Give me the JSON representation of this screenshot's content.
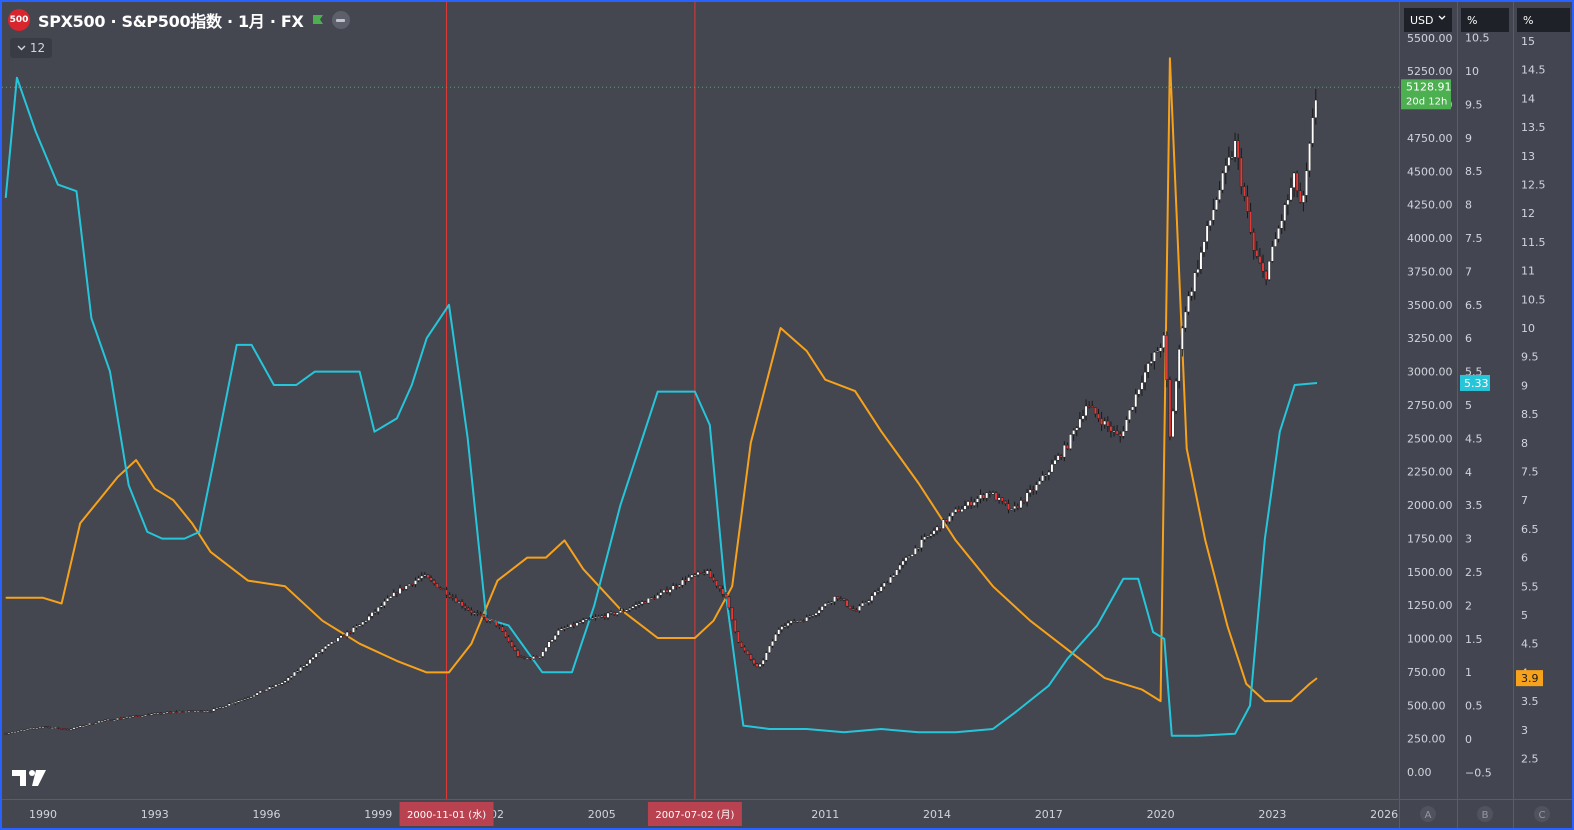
{
  "header": {
    "logo_text": "500",
    "title": "SPX500 · S&P500指数 · 1月 · FX",
    "collapse_count": "12",
    "flag_color": "#4caf50"
  },
  "scales": {
    "a_unit": "USD",
    "b_unit": "%",
    "c_unit": "%",
    "a_ticks": [
      "0.00",
      "250.00",
      "500.00",
      "750.00",
      "1000.00",
      "1250.00",
      "1500.00",
      "1750.00",
      "2000.00",
      "2250.00",
      "2500.00",
      "2750.00",
      "3000.00",
      "3250.00",
      "3500.00",
      "3750.00",
      "4000.00",
      "4250.00",
      "4500.00",
      "4750.00",
      "5000.00",
      "5250.00",
      "5500.00"
    ],
    "b_ticks": [
      "−0.5",
      "0",
      "0.5",
      "1",
      "1.5",
      "2",
      "2.5",
      "3",
      "3.5",
      "4",
      "4.5",
      "5",
      "5.5",
      "6",
      "6.5",
      "7",
      "7.5",
      "8",
      "8.5",
      "9",
      "9.5",
      "10",
      "10.5"
    ],
    "c_ticks": [
      "2.5",
      "3",
      "3.5",
      "4",
      "4.5",
      "5",
      "5.5",
      "6",
      "6.5",
      "7",
      "7.5",
      "8",
      "8.5",
      "9",
      "9.5",
      "10",
      "10.5",
      "11",
      "11.5",
      "12",
      "12.5",
      "13",
      "13.5",
      "14",
      "14.5",
      "15",
      "15.5"
    ],
    "bottom_labels": [
      "A",
      "B",
      "C"
    ]
  },
  "price_tag": {
    "value": "5128.91",
    "countdown": "20d 12h"
  },
  "b_tag": "5.33",
  "c_tag": "3.9",
  "crosshair_labels": [
    "2000-11-01 (水)",
    "2007-07-02 (月)"
  ],
  "x_axis_labels": [
    "1990",
    "1993",
    "1996",
    "1999",
    "2002",
    "2005",
    "2008",
    "2011",
    "2014",
    "2017",
    "2020",
    "2023",
    "2026"
  ],
  "colors": {
    "background": "#444650",
    "cyan": "#26c6da",
    "orange": "#f7a21b",
    "candle_up": "#ffffff",
    "candle_down": "#e53935",
    "price_tag": "#4caf50",
    "crosshair": "#e53935"
  },
  "chart_data": {
    "type": "line",
    "x_range": [
      1988.9,
      2026.4
    ],
    "series": [
      {
        "axis": "A",
        "points": [
          [
            1989.0,
            290
          ],
          [
            1990.0,
            340
          ],
          [
            1990.7,
            320
          ],
          [
            1991.5,
            380
          ],
          [
            1992.5,
            420
          ],
          [
            1993.5,
            450
          ],
          [
            1994.5,
            460
          ],
          [
            1995.5,
            560
          ],
          [
            1996.5,
            680
          ],
          [
            1997.5,
            920
          ],
          [
            1998.5,
            1100
          ],
          [
            1999.5,
            1350
          ],
          [
            2000.2,
            1470
          ],
          [
            2000.8,
            1350
          ],
          [
            2001.5,
            1200
          ],
          [
            2002.2,
            1100
          ],
          [
            2002.8,
            850
          ],
          [
            2003.3,
            860
          ],
          [
            2003.8,
            1050
          ],
          [
            2004.5,
            1130
          ],
          [
            2005.5,
            1200
          ],
          [
            2006.5,
            1320
          ],
          [
            2007.3,
            1450
          ],
          [
            2007.8,
            1500
          ],
          [
            2008.3,
            1330
          ],
          [
            2008.7,
            950
          ],
          [
            2009.2,
            770
          ],
          [
            2009.8,
            1100
          ],
          [
            2010.5,
            1150
          ],
          [
            2011.3,
            1320
          ],
          [
            2011.8,
            1200
          ],
          [
            2012.5,
            1380
          ],
          [
            2013.5,
            1700
          ],
          [
            2014.5,
            1950
          ],
          [
            2015.4,
            2100
          ],
          [
            2016.0,
            1950
          ],
          [
            2016.7,
            2150
          ],
          [
            2017.5,
            2450
          ],
          [
            2018.0,
            2750
          ],
          [
            2018.9,
            2500
          ],
          [
            2019.5,
            2950
          ],
          [
            2020.1,
            3250
          ],
          [
            2020.25,
            2500
          ],
          [
            2020.6,
            3400
          ],
          [
            2021.0,
            3800
          ],
          [
            2021.5,
            4300
          ],
          [
            2022.0,
            4700
          ],
          [
            2022.5,
            3900
          ],
          [
            2022.8,
            3700
          ],
          [
            2023.2,
            4100
          ],
          [
            2023.6,
            4450
          ],
          [
            2023.8,
            4200
          ],
          [
            2024.2,
            5128.91
          ]
        ]
      },
      {
        "axis": "B",
        "points": [
          [
            1989.0,
            8.1
          ],
          [
            1989.3,
            9.9
          ],
          [
            1989.8,
            9.1
          ],
          [
            1990.4,
            8.3
          ],
          [
            1990.9,
            8.2
          ],
          [
            1991.3,
            6.3
          ],
          [
            1991.8,
            5.5
          ],
          [
            1992.3,
            3.8
          ],
          [
            1992.8,
            3.1
          ],
          [
            1993.2,
            3.0
          ],
          [
            1993.8,
            3.0
          ],
          [
            1994.2,
            3.1
          ],
          [
            1994.6,
            4.2
          ],
          [
            1995.2,
            5.9
          ],
          [
            1995.6,
            5.9
          ],
          [
            1996.2,
            5.3
          ],
          [
            1996.8,
            5.3
          ],
          [
            1997.3,
            5.5
          ],
          [
            1998.0,
            5.5
          ],
          [
            1998.5,
            5.5
          ],
          [
            1998.9,
            4.6
          ],
          [
            1999.5,
            4.8
          ],
          [
            1999.9,
            5.3
          ],
          [
            2000.3,
            6.0
          ],
          [
            2000.9,
            6.5
          ],
          [
            2001.4,
            4.5
          ],
          [
            2001.9,
            1.8
          ],
          [
            2002.5,
            1.7
          ],
          [
            2003.4,
            1.0
          ],
          [
            2004.2,
            1.0
          ],
          [
            2004.8,
            2.0
          ],
          [
            2005.5,
            3.5
          ],
          [
            2006.5,
            5.2
          ],
          [
            2007.5,
            5.2
          ],
          [
            2007.9,
            4.7
          ],
          [
            2008.3,
            2.3
          ],
          [
            2008.8,
            0.2
          ],
          [
            2009.5,
            0.15
          ],
          [
            2010.5,
            0.15
          ],
          [
            2011.5,
            0.1
          ],
          [
            2012.5,
            0.15
          ],
          [
            2013.5,
            0.1
          ],
          [
            2014.5,
            0.1
          ],
          [
            2015.5,
            0.15
          ],
          [
            2016.1,
            0.4
          ],
          [
            2017.0,
            0.8
          ],
          [
            2017.5,
            1.2
          ],
          [
            2018.3,
            1.7
          ],
          [
            2019.0,
            2.4
          ],
          [
            2019.4,
            2.4
          ],
          [
            2019.8,
            1.6
          ],
          [
            2020.1,
            1.5
          ],
          [
            2020.3,
            0.05
          ],
          [
            2021.0,
            0.05
          ],
          [
            2022.0,
            0.08
          ],
          [
            2022.4,
            0.5
          ],
          [
            2022.8,
            3.0
          ],
          [
            2023.2,
            4.6
          ],
          [
            2023.6,
            5.3
          ],
          [
            2024.2,
            5.33
          ]
        ]
      },
      {
        "axis": "C",
        "points": [
          [
            1989.0,
            5.3
          ],
          [
            1989.5,
            5.3
          ],
          [
            1990.0,
            5.3
          ],
          [
            1990.5,
            5.2
          ],
          [
            1991.0,
            6.6
          ],
          [
            1991.5,
            7.0
          ],
          [
            1992.0,
            7.4
          ],
          [
            1992.5,
            7.7
          ],
          [
            1993.0,
            7.2
          ],
          [
            1993.5,
            7.0
          ],
          [
            1994.0,
            6.6
          ],
          [
            1994.5,
            6.1
          ],
          [
            1995.5,
            5.6
          ],
          [
            1996.5,
            5.5
          ],
          [
            1997.5,
            4.9
          ],
          [
            1998.5,
            4.5
          ],
          [
            1999.5,
            4.2
          ],
          [
            2000.3,
            4.0
          ],
          [
            2000.9,
            4.0
          ],
          [
            2001.5,
            4.5
          ],
          [
            2002.2,
            5.6
          ],
          [
            2003.0,
            6.0
          ],
          [
            2003.5,
            6.0
          ],
          [
            2004.0,
            6.3
          ],
          [
            2004.5,
            5.8
          ],
          [
            2005.5,
            5.1
          ],
          [
            2006.5,
            4.6
          ],
          [
            2007.5,
            4.6
          ],
          [
            2008.0,
            4.9
          ],
          [
            2008.5,
            5.5
          ],
          [
            2009.0,
            8.0
          ],
          [
            2009.8,
            10.0
          ],
          [
            2010.5,
            9.6
          ],
          [
            2011.0,
            9.1
          ],
          [
            2011.8,
            8.9
          ],
          [
            2012.5,
            8.2
          ],
          [
            2013.5,
            7.3
          ],
          [
            2014.5,
            6.3
          ],
          [
            2015.5,
            5.5
          ],
          [
            2016.5,
            4.9
          ],
          [
            2017.5,
            4.4
          ],
          [
            2018.5,
            3.9
          ],
          [
            2019.5,
            3.7
          ],
          [
            2020.0,
            3.5
          ],
          [
            2020.25,
            14.7
          ],
          [
            2020.7,
            7.9
          ],
          [
            2021.2,
            6.3
          ],
          [
            2021.8,
            4.8
          ],
          [
            2022.3,
            3.8
          ],
          [
            2022.8,
            3.5
          ],
          [
            2023.5,
            3.5
          ],
          [
            2024.0,
            3.8
          ],
          [
            2024.2,
            3.9
          ]
        ]
      }
    ]
  }
}
